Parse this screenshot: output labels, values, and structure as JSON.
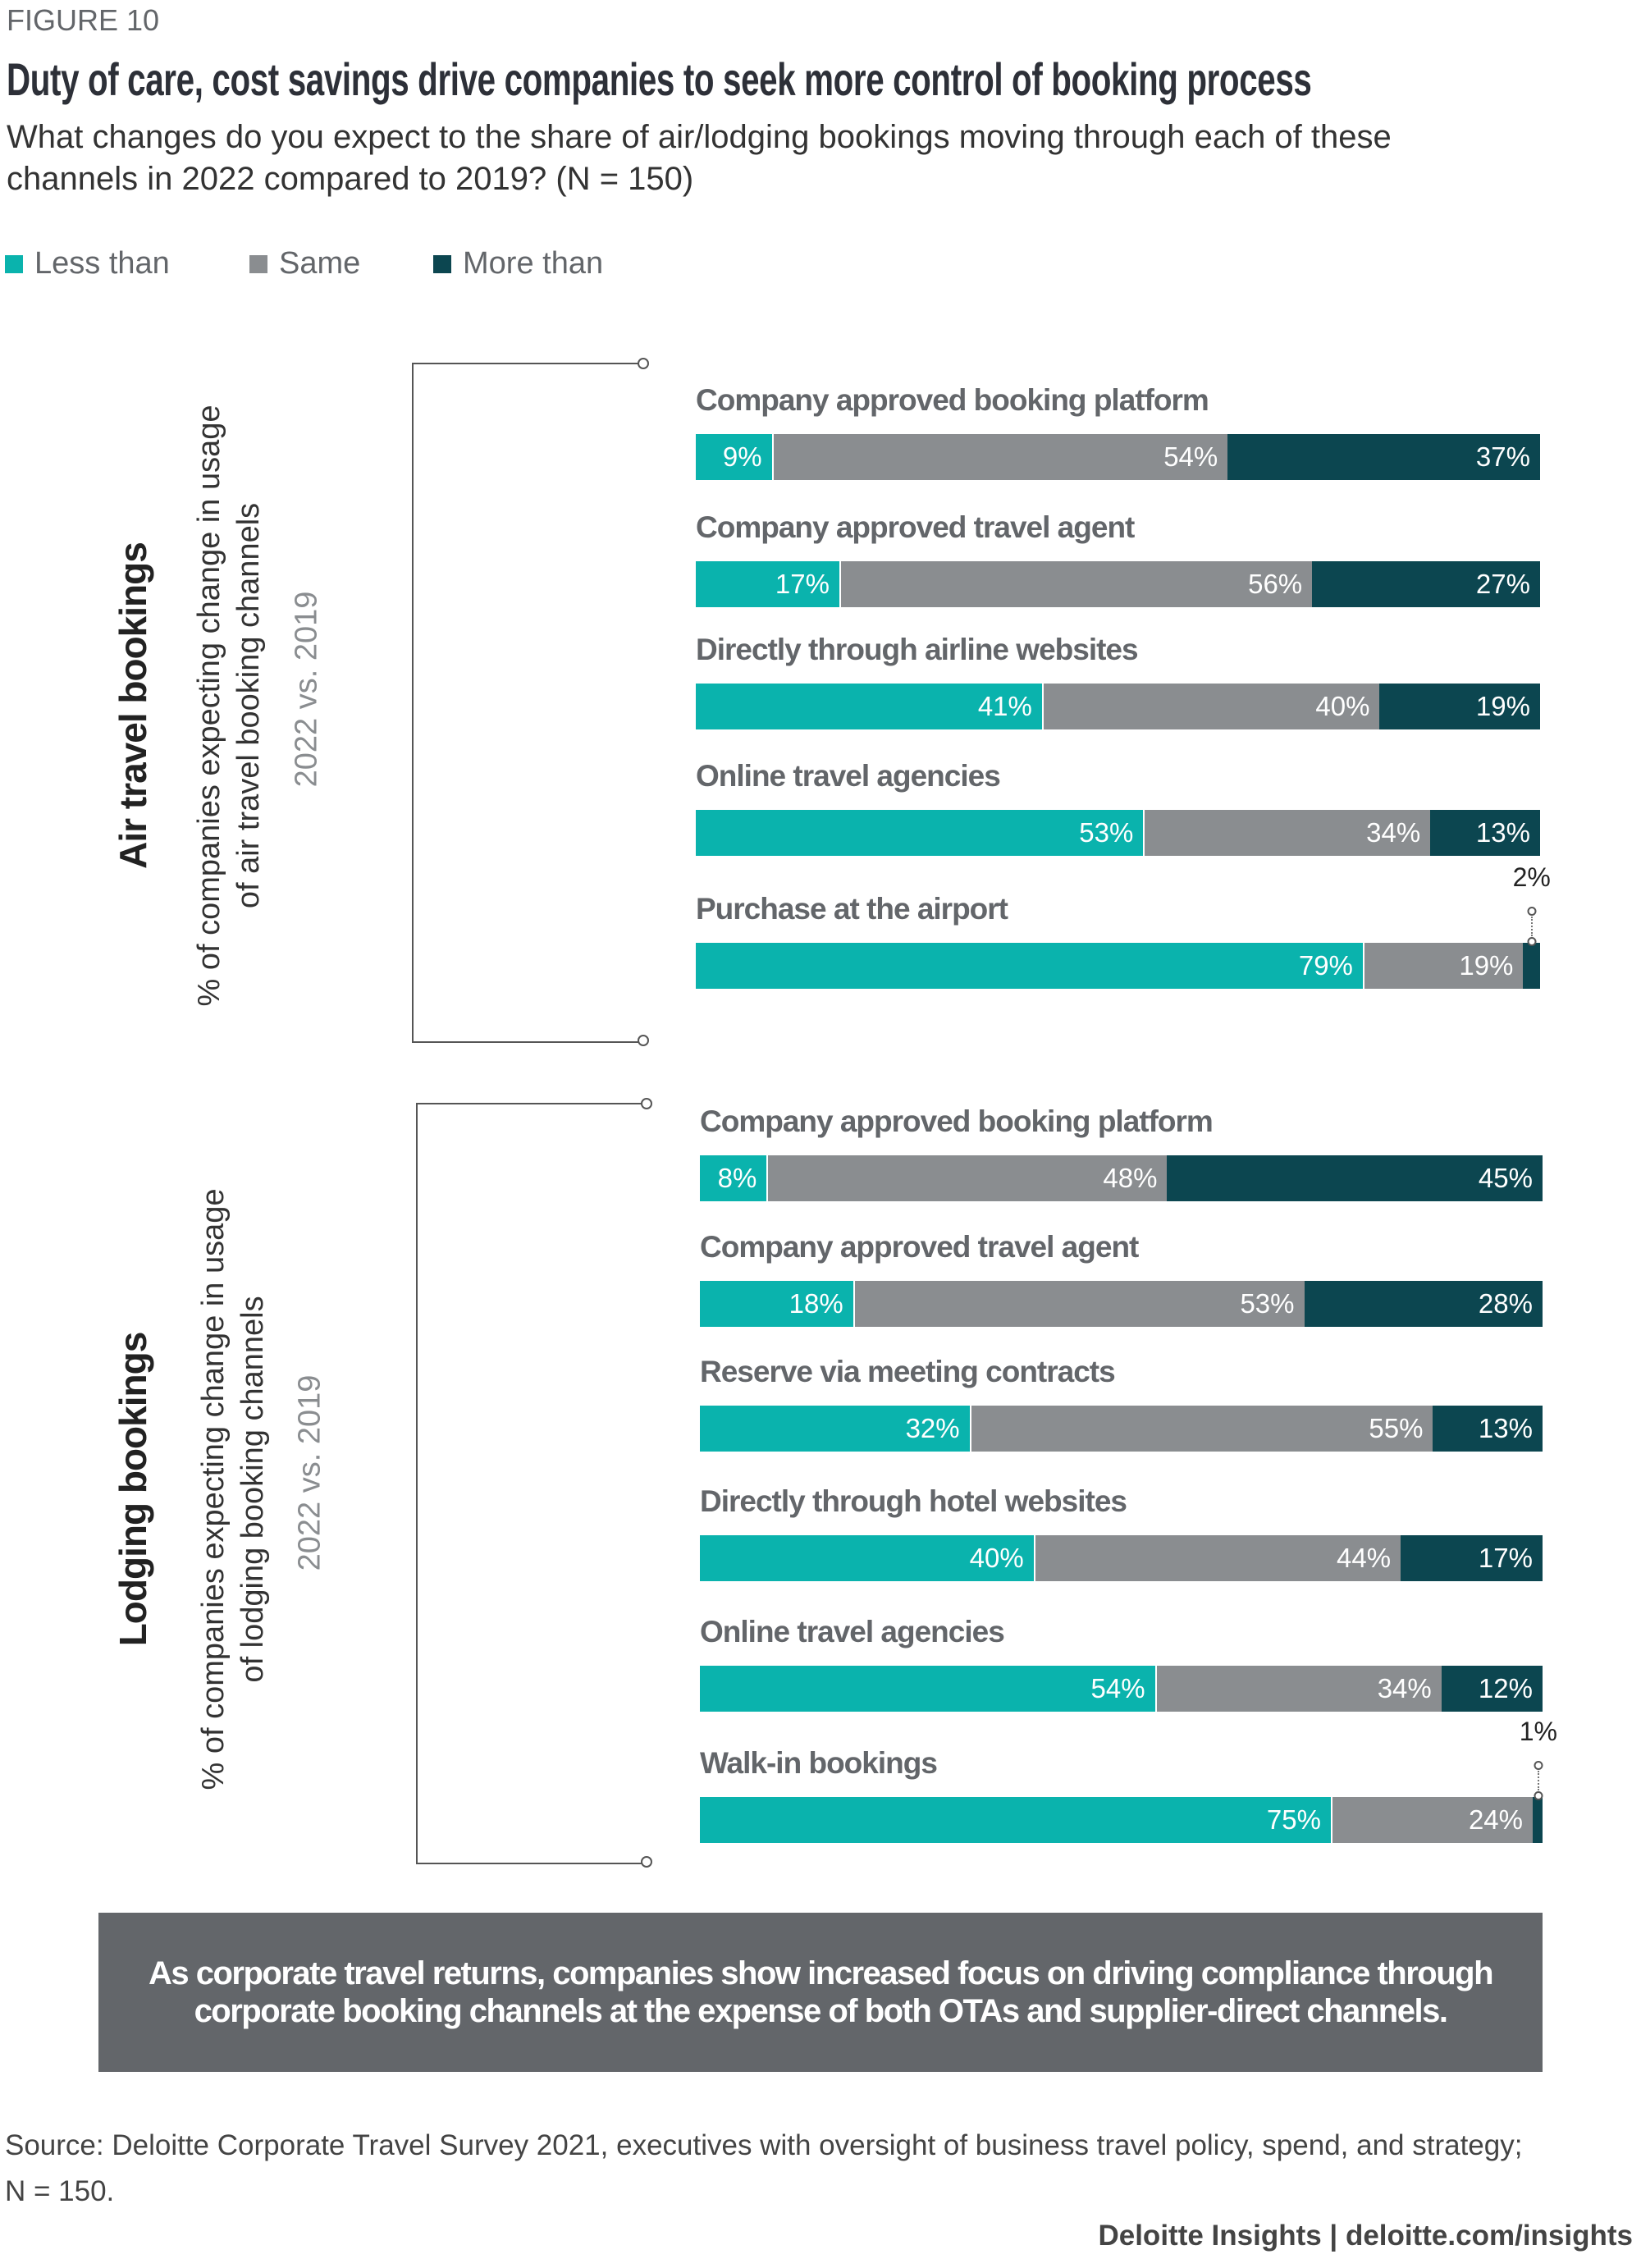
{
  "figure_label": "FIGURE 10",
  "title": "Duty of care, cost savings drive companies to seek more control of booking process",
  "subtitle_lines": [
    "What changes do you expect to the share of air/lodging bookings moving through each of these",
    "channels in 2022 compared to 2019? (N = 150)"
  ],
  "colors": {
    "less": "#0ab3ad",
    "same": "#8a8d90",
    "more": "#0c4650"
  },
  "chart_data": {
    "type": "bar",
    "orientation": "horizontal",
    "stacked": true,
    "legend": {
      "placement": "top-left",
      "entries": [
        "Less than",
        "Same",
        "More than"
      ]
    },
    "groups": [
      {
        "title": "Air travel bookings",
        "axis_label_lines": [
          "% of companies expecting change in usage",
          "of air travel booking channels"
        ],
        "period": "2022 vs. 2019",
        "categories": [
          "Company approved booking platform",
          "Company approved travel agent",
          "Directly through airline websites",
          "Online travel agencies",
          "Purchase at the airport"
        ],
        "series": [
          {
            "name": "Less than",
            "values": [
              9,
              17,
              41,
              53,
              79
            ]
          },
          {
            "name": "Same",
            "values": [
              54,
              56,
              40,
              34,
              19
            ]
          },
          {
            "name": "More than",
            "values": [
              37,
              27,
              19,
              13,
              2
            ]
          }
        ]
      },
      {
        "title": "Lodging bookings",
        "axis_label_lines": [
          "% of companies expecting change in usage",
          "of lodging booking channels"
        ],
        "period": "2022 vs. 2019",
        "categories": [
          "Company approved booking platform",
          "Company approved travel agent",
          "Reserve via meeting contracts",
          "Directly through hotel websites",
          "Online travel agencies",
          "Walk-in bookings"
        ],
        "series": [
          {
            "name": "Less than",
            "values": [
              8,
              18,
              32,
              40,
              54,
              75
            ]
          },
          {
            "name": "Same",
            "values": [
              48,
              53,
              55,
              44,
              34,
              24
            ]
          },
          {
            "name": "More than",
            "values": [
              45,
              28,
              13,
              17,
              12,
              1
            ]
          }
        ]
      }
    ]
  },
  "callout_lines": [
    "As corporate travel returns, companies show increased focus on driving compliance through",
    "corporate booking channels at the expense of both OTAs and supplier-direct channels."
  ],
  "source_lines": [
    "Source: Deloitte Corporate Travel Survey 2021, executives with oversight of business travel policy, spend, and strategy;",
    "N = 150."
  ],
  "footer": "Deloitte Insights | deloitte.com/insights"
}
